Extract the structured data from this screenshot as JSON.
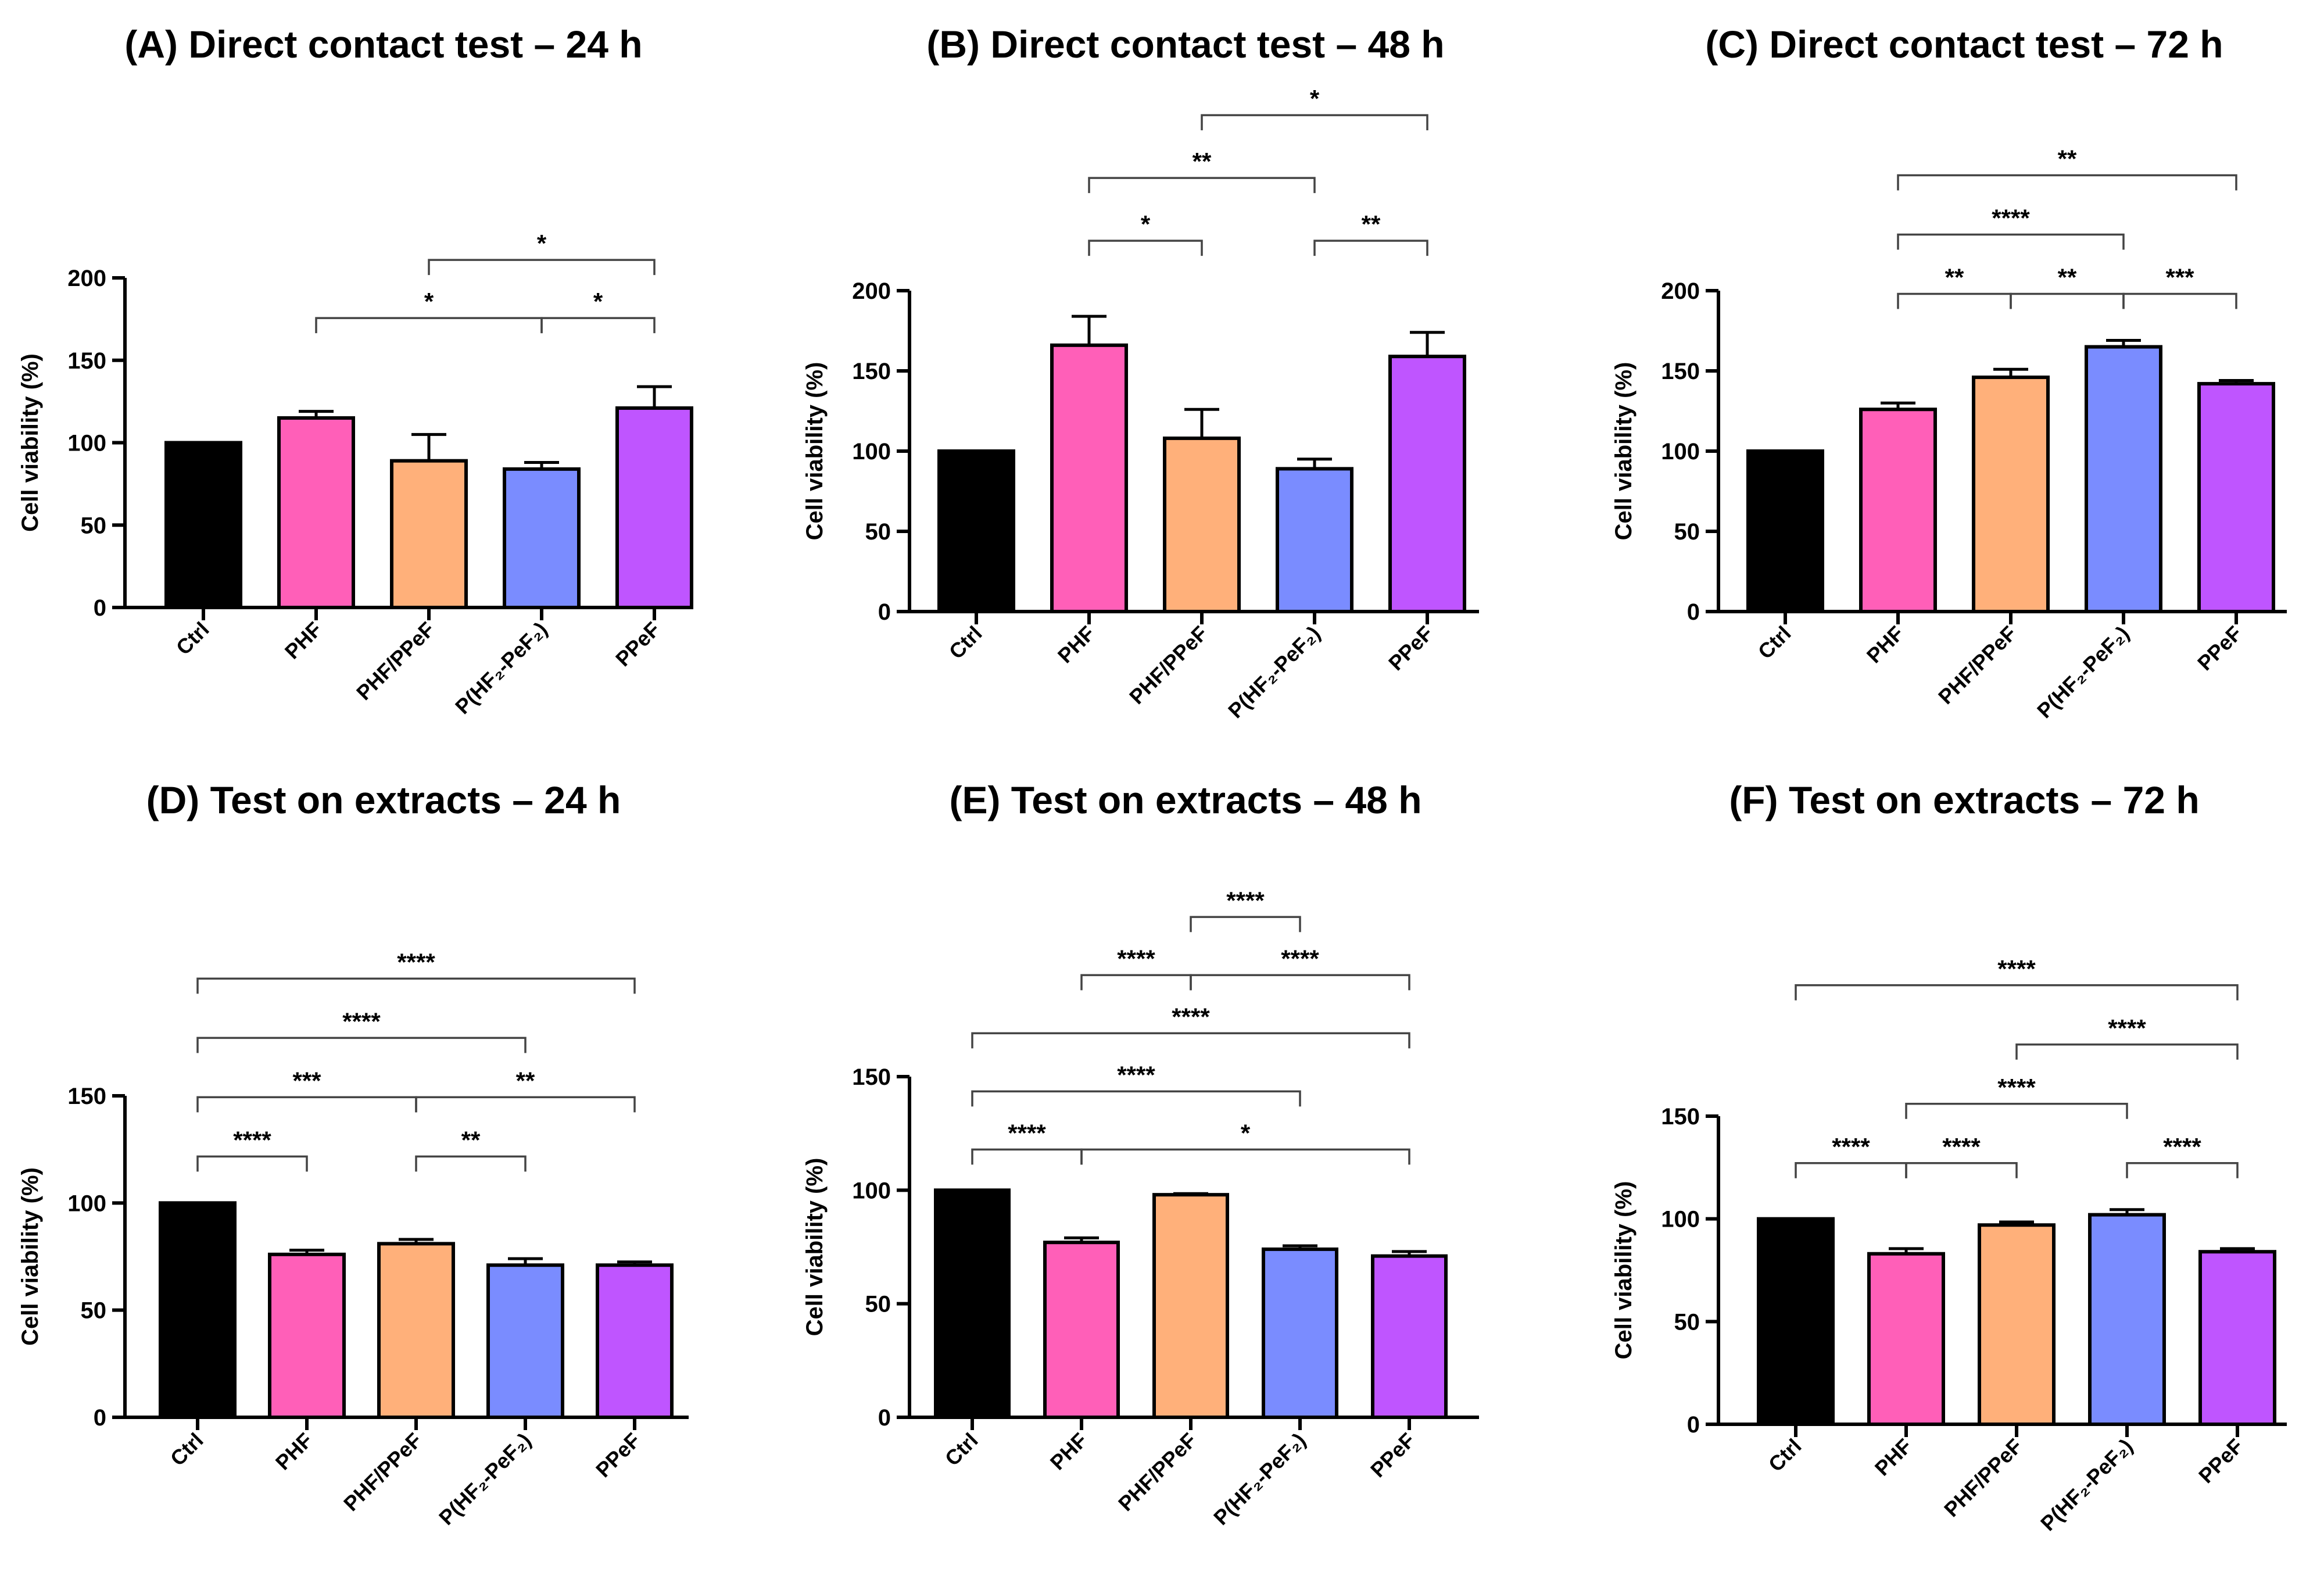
{
  "chart_data": [
    {
      "type": "bar",
      "panel": "A",
      "title": "(A) Direct contact test – 24 h",
      "ylabel": "Cell viability (%)",
      "ylim": [
        0,
        200
      ],
      "yticks": [
        0,
        50,
        100,
        150,
        200
      ],
      "categories": [
        "Ctrl",
        "PHF",
        "PHF/PPeF",
        "P(HF₂-PeF₂)",
        "PPeF"
      ],
      "values": [
        100,
        115,
        89,
        84,
        121
      ],
      "errors": [
        0,
        4,
        16,
        4,
        13
      ],
      "colors": [
        "#000000",
        "#ff5fb8",
        "#ffb07a",
        "#7a8cff",
        "#bf55ff"
      ],
      "significance": [
        {
          "from": 1,
          "to": 3,
          "level": 1,
          "label": "*"
        },
        {
          "from": 3,
          "to": 4,
          "level": 1,
          "label": "*"
        },
        {
          "from": 2,
          "to": 4,
          "level": 2,
          "label": "*"
        }
      ]
    },
    {
      "type": "bar",
      "panel": "B",
      "title": "(B) Direct contact test – 48 h",
      "ylabel": "Cell viability (%)",
      "ylim": [
        0,
        200
      ],
      "yticks": [
        0,
        50,
        100,
        150,
        200
      ],
      "categories": [
        "Ctrl",
        "PHF",
        "PHF/PPeF",
        "P(HF₂-PeF₂)",
        "PPeF"
      ],
      "values": [
        100,
        166,
        108,
        89,
        159
      ],
      "errors": [
        0,
        18,
        18,
        6,
        15
      ],
      "colors": [
        "#000000",
        "#ff5fb8",
        "#ffb07a",
        "#7a8cff",
        "#bf55ff"
      ],
      "significance": [
        {
          "from": 1,
          "to": 2,
          "level": 1,
          "label": "*"
        },
        {
          "from": 3,
          "to": 4,
          "level": 1,
          "label": "**"
        },
        {
          "from": 1,
          "to": 3,
          "level": 2,
          "label": "**"
        },
        {
          "from": 2,
          "to": 4,
          "level": 3,
          "label": "*"
        }
      ]
    },
    {
      "type": "bar",
      "panel": "C",
      "title": "(C) Direct contact test – 72 h",
      "ylabel": "Cell viability (%)",
      "ylim": [
        0,
        200
      ],
      "yticks": [
        0,
        50,
        100,
        150,
        200
      ],
      "categories": [
        "Ctrl",
        "PHF",
        "PHF/PPeF",
        "P(HF₂-PeF₂)",
        "PPeF"
      ],
      "values": [
        100,
        126,
        146,
        165,
        142
      ],
      "errors": [
        0,
        4,
        5,
        4,
        2
      ],
      "colors": [
        "#000000",
        "#ff5fb8",
        "#ffb07a",
        "#7a8cff",
        "#bf55ff"
      ],
      "significance": [
        {
          "from": 1,
          "to": 2,
          "level": 1,
          "label": "**"
        },
        {
          "from": 2,
          "to": 3,
          "level": 1,
          "label": "**"
        },
        {
          "from": 3,
          "to": 4,
          "level": 1,
          "label": "***"
        },
        {
          "from": 1,
          "to": 3,
          "level": 2,
          "label": "****"
        },
        {
          "from": 1,
          "to": 4,
          "level": 3,
          "label": "**"
        }
      ]
    },
    {
      "type": "bar",
      "panel": "D",
      "title": "(D) Test on extracts – 24 h",
      "ylabel": "Cell viability (%)",
      "ylim": [
        0,
        150
      ],
      "yticks": [
        0,
        50,
        100,
        150
      ],
      "categories": [
        "Ctrl",
        "PHF",
        "PHF/PPeF",
        "P(HF₂-PeF₂)",
        "PPeF"
      ],
      "values": [
        100,
        76,
        81,
        71,
        71
      ],
      "errors": [
        0,
        2,
        2,
        3,
        1.5
      ],
      "colors": [
        "#000000",
        "#ff5fb8",
        "#ffb07a",
        "#7a8cff",
        "#bf55ff"
      ],
      "significance": [
        {
          "from": 0,
          "to": 1,
          "level": 1,
          "label": "****"
        },
        {
          "from": 2,
          "to": 3,
          "level": 1,
          "label": "**"
        },
        {
          "from": 0,
          "to": 2,
          "level": 2,
          "label": "***"
        },
        {
          "from": 2,
          "to": 4,
          "level": 2,
          "label": "**"
        },
        {
          "from": 0,
          "to": 3,
          "level": 3,
          "label": "****"
        },
        {
          "from": 0,
          "to": 4,
          "level": 4,
          "label": "****"
        }
      ]
    },
    {
      "type": "bar",
      "panel": "E",
      "title": "(E) Test on extracts – 48 h",
      "ylabel": "Cell viability (%)",
      "ylim": [
        0,
        150
      ],
      "yticks": [
        0,
        50,
        100,
        150
      ],
      "categories": [
        "Ctrl",
        "PHF",
        "PHF/PPeF",
        "P(HF₂-PeF₂)",
        "PPeF"
      ],
      "values": [
        100,
        77,
        98,
        74,
        71
      ],
      "errors": [
        0,
        2,
        0.5,
        1.5,
        2
      ],
      "colors": [
        "#000000",
        "#ff5fb8",
        "#ffb07a",
        "#7a8cff",
        "#bf55ff"
      ],
      "significance": [
        {
          "from": 0,
          "to": 1,
          "level": 1,
          "label": "****"
        },
        {
          "from": 1,
          "to": 4,
          "level": 1,
          "label": "*"
        },
        {
          "from": 0,
          "to": 3,
          "level": 2,
          "label": "****"
        },
        {
          "from": 0,
          "to": 4,
          "level": 3,
          "label": "****"
        },
        {
          "from": 1,
          "to": 2,
          "level": 4,
          "label": "****"
        },
        {
          "from": 2,
          "to": 4,
          "level": 4,
          "label": "****"
        },
        {
          "from": 2,
          "to": 3,
          "level": 5,
          "label": "****"
        }
      ]
    },
    {
      "type": "bar",
      "panel": "F",
      "title": "(F) Test on extracts – 72 h",
      "ylabel": "Cell viability (%)",
      "ylim": [
        0,
        150
      ],
      "yticks": [
        0,
        50,
        100,
        150
      ],
      "categories": [
        "Ctrl",
        "PHF",
        "PHF/PPeF",
        "P(HF₂-PeF₂)",
        "PPeF"
      ],
      "values": [
        100,
        83,
        97,
        102,
        84
      ],
      "errors": [
        0,
        2.5,
        1.5,
        2.5,
        1.5
      ],
      "colors": [
        "#000000",
        "#ff5fb8",
        "#ffb07a",
        "#7a8cff",
        "#bf55ff"
      ],
      "significance": [
        {
          "from": 0,
          "to": 1,
          "level": 1,
          "label": "****"
        },
        {
          "from": 1,
          "to": 2,
          "level": 1,
          "label": "****"
        },
        {
          "from": 3,
          "to": 4,
          "level": 1,
          "label": "****"
        },
        {
          "from": 1,
          "to": 3,
          "level": 2,
          "label": "****"
        },
        {
          "from": 2,
          "to": 4,
          "level": 3,
          "label": "****"
        },
        {
          "from": 0,
          "to": 4,
          "level": 4,
          "label": "****"
        }
      ]
    }
  ]
}
